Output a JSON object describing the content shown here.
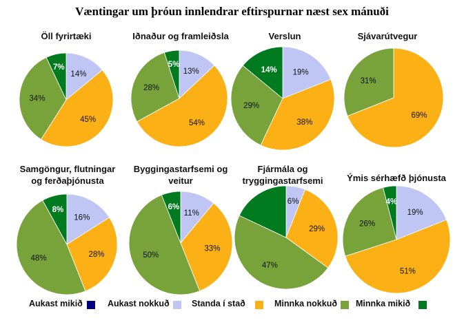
{
  "title": "Væntingar um þróun innlendrar eftirspurnar næst sex mánuði",
  "colors": {
    "aukast_mikid": "#000080",
    "aukast_nokkud": "#c0c6f4",
    "standa": "#fbb016",
    "minnka_nokkud": "#77a33a",
    "minnka_mikid": "#007a1e"
  },
  "legend": [
    {
      "label": "Aukast mikið",
      "color": "#000080"
    },
    {
      "label": "Aukast nokkuð",
      "color": "#c0c6f4"
    },
    {
      "label": "Standa í stað",
      "color": "#fbb016"
    },
    {
      "label": "Minnka nokkuð",
      "color": "#77a33a"
    },
    {
      "label": "Minnka mikið",
      "color": "#007a1e"
    }
  ],
  "chart_data": [
    {
      "type": "pie",
      "title": [
        "Öll fyrirtæki"
      ],
      "slices": [
        {
          "category": "Aukast nokkuð",
          "value": 14,
          "label": "14%"
        },
        {
          "category": "Standa í stað",
          "value": 45,
          "label": "45%"
        },
        {
          "category": "Minnka nokkuð",
          "value": 34,
          "label": "34%"
        },
        {
          "category": "Minnka mikið",
          "value": 7,
          "label": "7%"
        }
      ]
    },
    {
      "type": "pie",
      "title": [
        "Iðnaður og framleiðsla"
      ],
      "slices": [
        {
          "category": "Aukast nokkuð",
          "value": 13,
          "label": "13%"
        },
        {
          "category": "Standa í stað",
          "value": 54,
          "label": "54%"
        },
        {
          "category": "Minnka nokkuð",
          "value": 28,
          "label": "28%"
        },
        {
          "category": "Minnka mikið",
          "value": 5,
          "label": "5%"
        }
      ]
    },
    {
      "type": "pie",
      "title": [
        "Verslun"
      ],
      "slices": [
        {
          "category": "Aukast nokkuð",
          "value": 19,
          "label": "19%"
        },
        {
          "category": "Standa í stað",
          "value": 38,
          "label": "38%"
        },
        {
          "category": "Minnka nokkuð",
          "value": 29,
          "label": "29%"
        },
        {
          "category": "Minnka mikið",
          "value": 14,
          "label": "14%"
        }
      ]
    },
    {
      "type": "pie",
      "title": [
        "Sjávarútvegur"
      ],
      "slices": [
        {
          "category": "Standa í stað",
          "value": 69,
          "label": "69%"
        },
        {
          "category": "Minnka nokkuð",
          "value": 31,
          "label": "31%"
        }
      ]
    },
    {
      "type": "pie",
      "title": [
        "Samgöngur, flutningar",
        "og ferðaþjónusta"
      ],
      "slices": [
        {
          "category": "Aukast nokkuð",
          "value": 16,
          "label": "16%"
        },
        {
          "category": "Standa í stað",
          "value": 28,
          "label": "28%"
        },
        {
          "category": "Minnka nokkuð",
          "value": 48,
          "label": "48%"
        },
        {
          "category": "Minnka mikið",
          "value": 8,
          "label": "8%"
        }
      ]
    },
    {
      "type": "pie",
      "title": [
        "Byggingastarfsemi og",
        "veitur"
      ],
      "slices": [
        {
          "category": "Aukast nokkuð",
          "value": 11,
          "label": "11%"
        },
        {
          "category": "Standa í stað",
          "value": 33,
          "label": "33%"
        },
        {
          "category": "Minnka nokkuð",
          "value": 50,
          "label": "50%"
        },
        {
          "category": "Minnka mikið",
          "value": 6,
          "label": "6%"
        }
      ]
    },
    {
      "type": "pie",
      "title": [
        "Fjármála og",
        "tryggingastarfsemi"
      ],
      "slices": [
        {
          "category": "Aukast nokkuð",
          "value": 6,
          "label": "6%"
        },
        {
          "category": "Standa í stað",
          "value": 29,
          "label": "29%"
        },
        {
          "category": "Minnka nokkuð",
          "value": 47,
          "label": "47%"
        },
        {
          "category": "Minnka mikið",
          "value": 18,
          "label": ""
        }
      ]
    },
    {
      "type": "pie",
      "title": [
        "Ýmis sérhæfð þjónusta"
      ],
      "slices": [
        {
          "category": "Aukast nokkuð",
          "value": 19,
          "label": "19%"
        },
        {
          "category": "Standa í stað",
          "value": 51,
          "label": "51%"
        },
        {
          "category": "Minnka nokkuð",
          "value": 26,
          "label": "26%"
        },
        {
          "category": "Minnka mikið",
          "value": 4,
          "label": "4%"
        }
      ]
    }
  ]
}
